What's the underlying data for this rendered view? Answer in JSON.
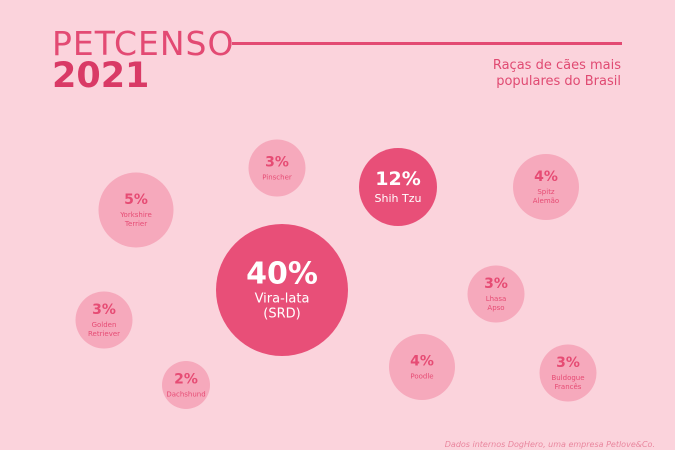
{
  "header": {
    "title_line1": "PETCENSO",
    "title_line2": "2021",
    "subtitle": "Raças de cães mais populares do Brasil"
  },
  "footer": {
    "source": "Dados internos DogHero, uma empresa Petlove&Co."
  },
  "colors": {
    "background": "#fbd3dc",
    "accent": "#e34a73",
    "large_bubble": "#e84f78",
    "small_bubble": "#f6a9bc",
    "small_text": "#e64c74"
  },
  "chart_data": {
    "type": "bubble",
    "title": "PETCENSO 2021",
    "subtitle": "Raças de cães mais populares do Brasil",
    "unit": "%",
    "items": [
      {
        "name": "Vira-lata (SRD)",
        "label_lines": [
          "Vira-lata",
          "(SRD)"
        ],
        "value": 40,
        "value_label": "40%"
      },
      {
        "name": "Shih Tzu",
        "label_lines": [
          "Shih Tzu"
        ],
        "value": 12,
        "value_label": "12%"
      },
      {
        "name": "Yorkshire Terrier",
        "label_lines": [
          "Yorkshire",
          "Terrier"
        ],
        "value": 5,
        "value_label": "5%"
      },
      {
        "name": "Spitz Alemão",
        "label_lines": [
          "Spitz",
          "Alemão"
        ],
        "value": 4,
        "value_label": "4%"
      },
      {
        "name": "Poodle",
        "label_lines": [
          "Poodle"
        ],
        "value": 4,
        "value_label": "4%"
      },
      {
        "name": "Pinscher",
        "label_lines": [
          "Pinscher"
        ],
        "value": 3,
        "value_label": "3%"
      },
      {
        "name": "Golden Retriever",
        "label_lines": [
          "Golden",
          "Retriever"
        ],
        "value": 3,
        "value_label": "3%"
      },
      {
        "name": "Lhasa Apso",
        "label_lines": [
          "Lhasa",
          "Apso"
        ],
        "value": 3,
        "value_label": "3%"
      },
      {
        "name": "Buldogue Francês",
        "label_lines": [
          "Buldogue",
          "Francês"
        ],
        "value": 3,
        "value_label": "3%"
      },
      {
        "name": "Dachshund",
        "label_lines": [
          "Dachshund"
        ],
        "value": 2,
        "value_label": "2%"
      }
    ]
  }
}
